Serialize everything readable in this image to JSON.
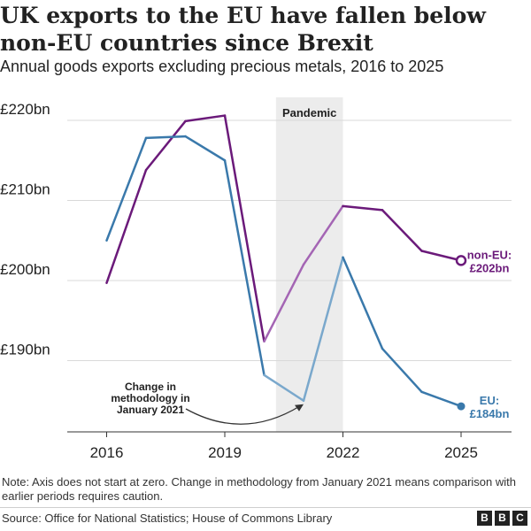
{
  "title": "UK exports to the EU have fallen below non-EU countries since Brexit",
  "subtitle": "Annual goods exports excluding precious metals, 2016 to 2025",
  "note": "Note: Axis does not start at zero. Change in methodology from January 2021 means comparison with earlier periods requires caution.",
  "source": "Source: Office for National Statistics; House of Commons Library",
  "logo": [
    "B",
    "B",
    "C"
  ],
  "chart_data": {
    "type": "line",
    "ylim": [
      181,
      222
    ],
    "xlim": [
      2016,
      2025
    ],
    "yticks": [
      {
        "value": 190,
        "label": "£190bn"
      },
      {
        "value": 200,
        "label": "£200bn"
      },
      {
        "value": 210,
        "label": "£210bn"
      },
      {
        "value": 220,
        "label": "£220bn"
      }
    ],
    "xticks": [
      {
        "value": 2016,
        "label": "2016"
      },
      {
        "value": 2019,
        "label": "2019"
      },
      {
        "value": 2022,
        "label": "2022"
      },
      {
        "value": 2025,
        "label": "2025"
      }
    ],
    "grid": true,
    "shaded_region": {
      "from": 2020.3,
      "to": 2022,
      "label": "Pandemic"
    },
    "methodology_change": {
      "from": 2020.5,
      "to": 2021.5,
      "label": [
        "Change in",
        "methodology in",
        "January 2021"
      ]
    },
    "series": [
      {
        "name": "non-EU",
        "color": "#6b1a7a",
        "faded_color": "#a465b4",
        "end_label": [
          "non-EU:",
          "£202bn"
        ],
        "x": [
          2016,
          2017,
          2018,
          2019,
          2020,
          2021,
          2022,
          2023,
          2024,
          2025
        ],
        "values": [
          199.7,
          213.8,
          219.9,
          220.6,
          192.4,
          202.0,
          209.3,
          208.8,
          203.7,
          202.5
        ]
      },
      {
        "name": "EU",
        "color": "#3a79ab",
        "faded_color": "#7aa8cc",
        "end_label": [
          "EU:",
          "£184bn"
        ],
        "x": [
          2016,
          2017,
          2018,
          2019,
          2020,
          2021,
          2022,
          2023,
          2024,
          2025
        ],
        "values": [
          205.0,
          217.8,
          218.0,
          215.0,
          188.2,
          185.0,
          202.9,
          191.5,
          186.1,
          184.3
        ]
      }
    ]
  }
}
